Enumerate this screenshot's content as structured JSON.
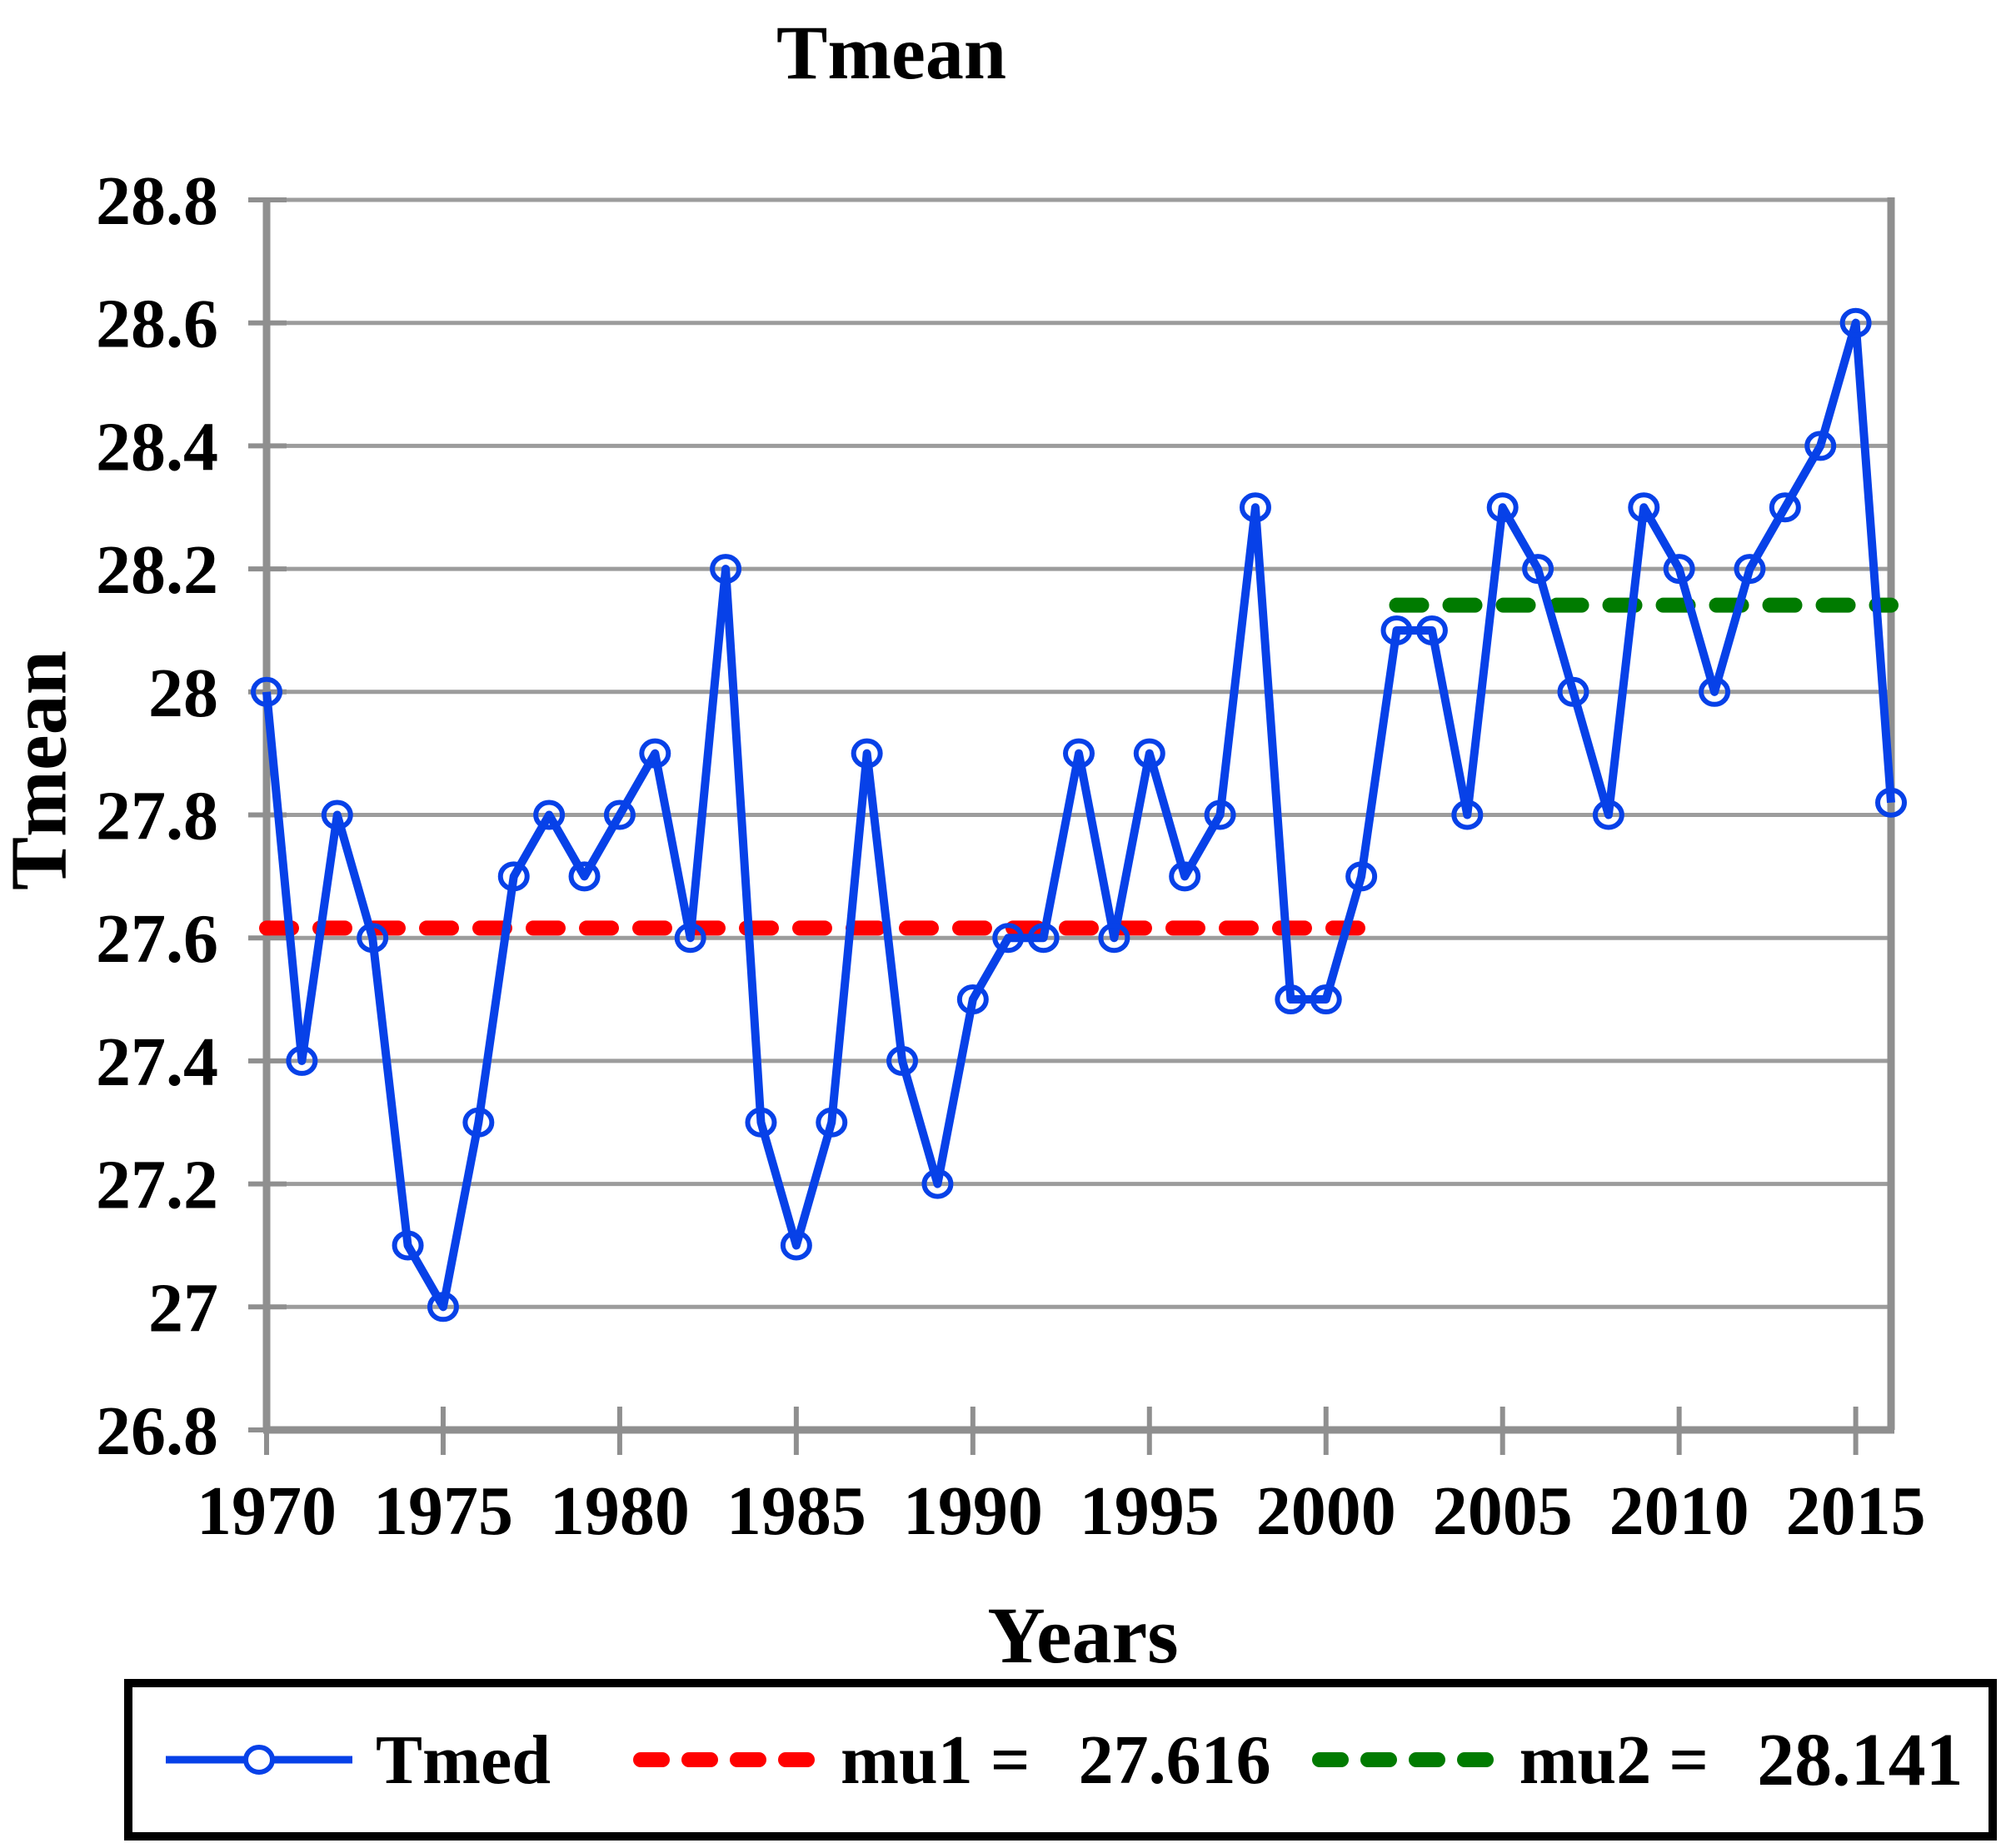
{
  "chart_data": {
    "type": "line",
    "title": "Tmean",
    "xlabel": "Years",
    "ylabel": "Tmean",
    "grid": true,
    "ylim": [
      26.8,
      28.8
    ],
    "xlim": [
      1970,
      2016
    ],
    "ytick_labels": [
      "28.8",
      "28.6",
      "28.4",
      "28.2",
      "28",
      "27.8",
      "27.6",
      "27.4",
      "27.2",
      "27",
      "26.8"
    ],
    "ytick_values": [
      28.8,
      28.6,
      28.4,
      28.2,
      28.0,
      27.8,
      27.6,
      27.4,
      27.2,
      27.0,
      26.8
    ],
    "xticks": [
      1970,
      1975,
      1980,
      1985,
      1990,
      1995,
      2000,
      2005,
      2010,
      2015
    ],
    "x": [
      1970,
      1971,
      1972,
      1973,
      1974,
      1975,
      1976,
      1977,
      1978,
      1979,
      1980,
      1981,
      1982,
      1983,
      1984,
      1985,
      1986,
      1987,
      1988,
      1989,
      1990,
      1991,
      1992,
      1993,
      1994,
      1995,
      1996,
      1997,
      1998,
      1999,
      2000,
      2001,
      2002,
      2003,
      2004,
      2005,
      2006,
      2007,
      2008,
      2009,
      2010,
      2011,
      2012,
      2013,
      2014,
      2015,
      2016
    ],
    "series": [
      {
        "name": "Tmed",
        "color": "#0741E8",
        "marker": "open-circle",
        "values": [
          28.0,
          27.4,
          27.8,
          27.6,
          27.1,
          27.0,
          27.3,
          27.7,
          27.8,
          27.7,
          27.8,
          27.9,
          27.6,
          28.2,
          27.3,
          27.1,
          27.3,
          27.9,
          27.4,
          27.2,
          27.5,
          27.6,
          27.6,
          27.9,
          27.6,
          27.9,
          27.7,
          27.8,
          28.3,
          27.5,
          27.5,
          27.7,
          28.1,
          28.1,
          27.8,
          28.3,
          28.2,
          28.0,
          27.8,
          28.3,
          28.2,
          28.0,
          28.2,
          28.3,
          28.4,
          28.6,
          27.82
        ]
      }
    ],
    "reference_lines": [
      {
        "name": "mu1",
        "value": 27.616,
        "color": "#FF0000",
        "style": "dashed",
        "x_start": 1970,
        "x_end": 2001
      },
      {
        "name": "mu2",
        "value": 28.141,
        "color": "#007B00",
        "style": "dashed",
        "x_start": 2002,
        "x_end": 2016
      }
    ],
    "legend": {
      "position": "bottom",
      "series_label": "Tmed",
      "mu1_label": "mu1 =",
      "mu1_value": "27.616",
      "mu2_label": "mu2 =",
      "mu2_value": "28.141"
    }
  },
  "colors": {
    "series": "#0741E8",
    "mu1": "#FF0000",
    "mu2": "#007B00",
    "gridline": "#9C9C9C",
    "axis": "#8F8F8F",
    "text": "#000000"
  }
}
